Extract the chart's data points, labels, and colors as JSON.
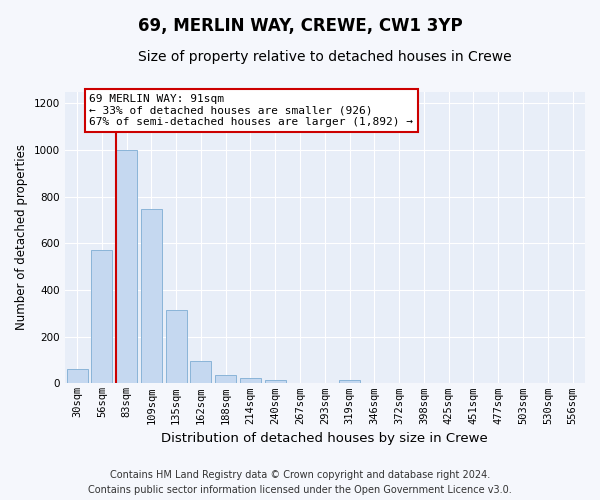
{
  "title": "69, MERLIN WAY, CREWE, CW1 3YP",
  "subtitle": "Size of property relative to detached houses in Crewe",
  "xlabel": "Distribution of detached houses by size in Crewe",
  "ylabel": "Number of detached properties",
  "bar_color": "#c5d8f0",
  "bar_edge_color": "#8ab4d8",
  "plot_bg_color": "#e8eef8",
  "fig_bg_color": "#f5f7fc",
  "categories": [
    "30sqm",
    "56sqm",
    "83sqm",
    "109sqm",
    "135sqm",
    "162sqm",
    "188sqm",
    "214sqm",
    "240sqm",
    "267sqm",
    "293sqm",
    "319sqm",
    "346sqm",
    "372sqm",
    "398sqm",
    "425sqm",
    "451sqm",
    "477sqm",
    "503sqm",
    "530sqm",
    "556sqm"
  ],
  "values": [
    62,
    570,
    1000,
    745,
    315,
    95,
    38,
    24,
    14,
    0,
    0,
    14,
    0,
    0,
    0,
    0,
    0,
    0,
    0,
    0,
    0
  ],
  "ylim": [
    0,
    1250
  ],
  "yticks": [
    0,
    200,
    400,
    600,
    800,
    1000,
    1200
  ],
  "property_bin_index": 2,
  "annotation_text": "69 MERLIN WAY: 91sqm\n← 33% of detached houses are smaller (926)\n67% of semi-detached houses are larger (1,892) →",
  "annotation_box_color": "#ffffff",
  "annotation_border_color": "#cc0000",
  "property_line_color": "#cc0000",
  "footer_text": "Contains HM Land Registry data © Crown copyright and database right 2024.\nContains public sector information licensed under the Open Government Licence v3.0.",
  "title_fontsize": 12,
  "subtitle_fontsize": 10,
  "xlabel_fontsize": 9.5,
  "ylabel_fontsize": 8.5,
  "annotation_fontsize": 8,
  "footer_fontsize": 7,
  "tick_fontsize": 7.5
}
